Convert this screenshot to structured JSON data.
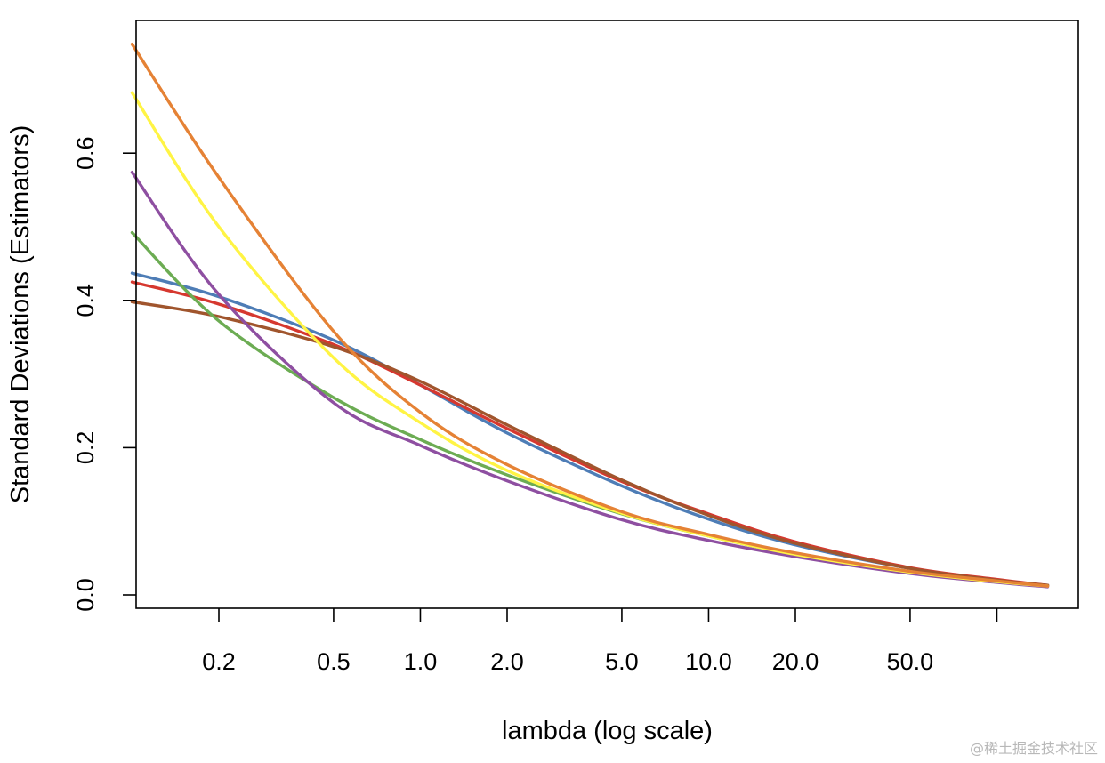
{
  "watermark": "@稀土掘金技术社区",
  "chart_data": {
    "type": "line",
    "title": "",
    "xlabel": "lambda (log scale)",
    "ylabel": "Standard Deviations (Estimators)",
    "xscale": "log",
    "xlim": [
      0.1,
      100
    ],
    "ylim": [
      0.0,
      0.75
    ],
    "xticks": [
      0.2,
      0.5,
      1.0,
      2.0,
      5.0,
      10.0,
      20.0,
      50.0,
      100.0
    ],
    "xtick_labels": [
      "0.2",
      "0.5",
      "1.0",
      "2.0",
      "5.0",
      "10.0",
      "20.0",
      "50.0",
      ""
    ],
    "yticks": [
      0.0,
      0.2,
      0.4,
      0.6
    ],
    "ytick_labels": [
      "0.0",
      "0.2",
      "0.4",
      "0.6"
    ],
    "grid": false,
    "x": [
      0.1,
      0.2,
      0.5,
      1.0,
      2.0,
      5.0,
      10.0,
      20.0,
      50.0,
      100.0,
      150.0
    ],
    "series": [
      {
        "color": "#4E7DB6",
        "values": [
          0.437,
          0.405,
          0.346,
          0.285,
          0.22,
          0.148,
          0.103,
          0.068,
          0.036,
          0.02,
          0.013
        ]
      },
      {
        "color": "#D6382F",
        "values": [
          0.425,
          0.395,
          0.34,
          0.285,
          0.226,
          0.154,
          0.11,
          0.072,
          0.037,
          0.021,
          0.013
        ]
      },
      {
        "color": "#A0552D",
        "values": [
          0.398,
          0.378,
          0.337,
          0.29,
          0.231,
          0.156,
          0.108,
          0.07,
          0.036,
          0.02,
          0.013
        ]
      },
      {
        "color": "#6CAC53",
        "values": [
          0.492,
          0.372,
          0.268,
          0.211,
          0.163,
          0.11,
          0.08,
          0.055,
          0.031,
          0.018,
          0.012
        ]
      },
      {
        "color": "#8E4FA1",
        "values": [
          0.574,
          0.408,
          0.261,
          0.203,
          0.155,
          0.102,
          0.074,
          0.052,
          0.029,
          0.017,
          0.011
        ]
      },
      {
        "color": "#FFF444",
        "values": [
          0.682,
          0.5,
          0.322,
          0.234,
          0.169,
          0.111,
          0.08,
          0.055,
          0.031,
          0.018,
          0.012
        ]
      },
      {
        "color": "#E58235",
        "values": [
          0.748,
          0.567,
          0.358,
          0.248,
          0.177,
          0.113,
          0.082,
          0.057,
          0.032,
          0.019,
          0.012
        ]
      }
    ]
  }
}
